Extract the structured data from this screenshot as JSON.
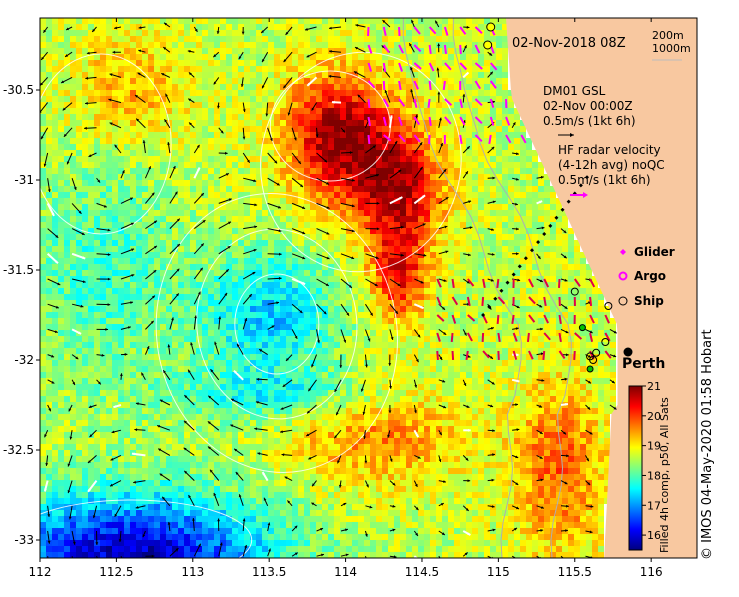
{
  "map": {
    "date_title": "02-Nov-2018 08Z",
    "isobaths": [
      "200m",
      "1000m"
    ],
    "mooring_label": "DM01 GSL",
    "mooring_time": "02-Nov 00:00Z",
    "mooring_scale": "0.5m/s (1kt 6h)",
    "hf_title_1": "HF radar velocity",
    "hf_title_2": "(4-12h avg) noQC",
    "hf_scale": "0.5m/s (1kt 6h)",
    "legend": [
      {
        "label": "Glider",
        "color": "#ff00ff",
        "symbol": "diamond"
      },
      {
        "label": "Argo",
        "color": "#ff00ff",
        "symbol": "ring"
      },
      {
        "label": "Ship",
        "color": "#000000",
        "symbol": "circle"
      }
    ],
    "city": {
      "label": "Perth",
      "lon": 115.86,
      "lat": -31.95
    },
    "colorbar": {
      "label": "Filled 4h comp, p50, All Sats",
      "ticks": [
        "21",
        "20",
        "19",
        "18",
        "17",
        "16"
      ],
      "range": [
        15.5,
        21
      ],
      "colors": [
        "#00007f",
        "#0000ff",
        "#007fff",
        "#00ffff",
        "#7fff7f",
        "#ffff00",
        "#ff7f00",
        "#ff0000",
        "#7f0000"
      ]
    },
    "credit": "© IMOS 04-May-2020 01:58 Hobart",
    "axes": {
      "lon_ticks": [
        "112",
        "112.5",
        "113",
        "113.5",
        "114",
        "114.5",
        "115",
        "115.5",
        "116"
      ],
      "lat_ticks": [
        "-30.5",
        "-31",
        "-31.5",
        "-32",
        "-32.5",
        "-33"
      ],
      "lon_range": [
        112,
        116.3
      ],
      "lat_range": [
        -33.1,
        -30.1
      ]
    },
    "land_color": "#f8c8a0"
  }
}
